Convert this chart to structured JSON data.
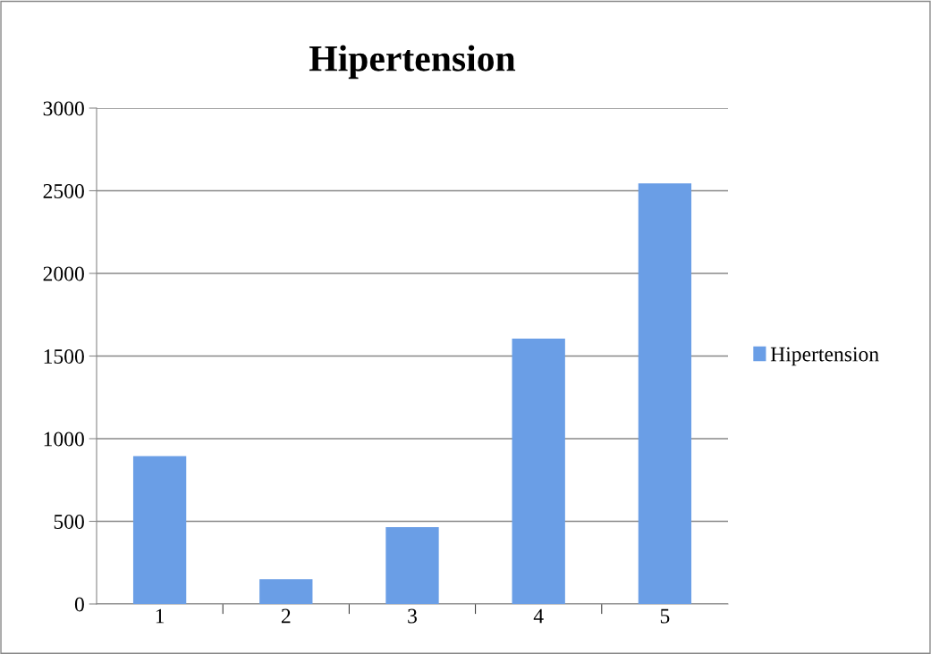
{
  "chart_data": {
    "type": "bar",
    "title": "Hipertension",
    "categories": [
      "1",
      "2",
      "3",
      "4",
      "5"
    ],
    "series": [
      {
        "name": "Hipertension",
        "color": "#6a9ee6",
        "values": [
          895,
          150,
          465,
          1605,
          2545
        ]
      }
    ],
    "ylim": [
      0,
      3000
    ],
    "yticks": [
      0,
      500,
      1000,
      1500,
      2000,
      2500,
      3000
    ],
    "grid": "y",
    "legend": "right"
  }
}
